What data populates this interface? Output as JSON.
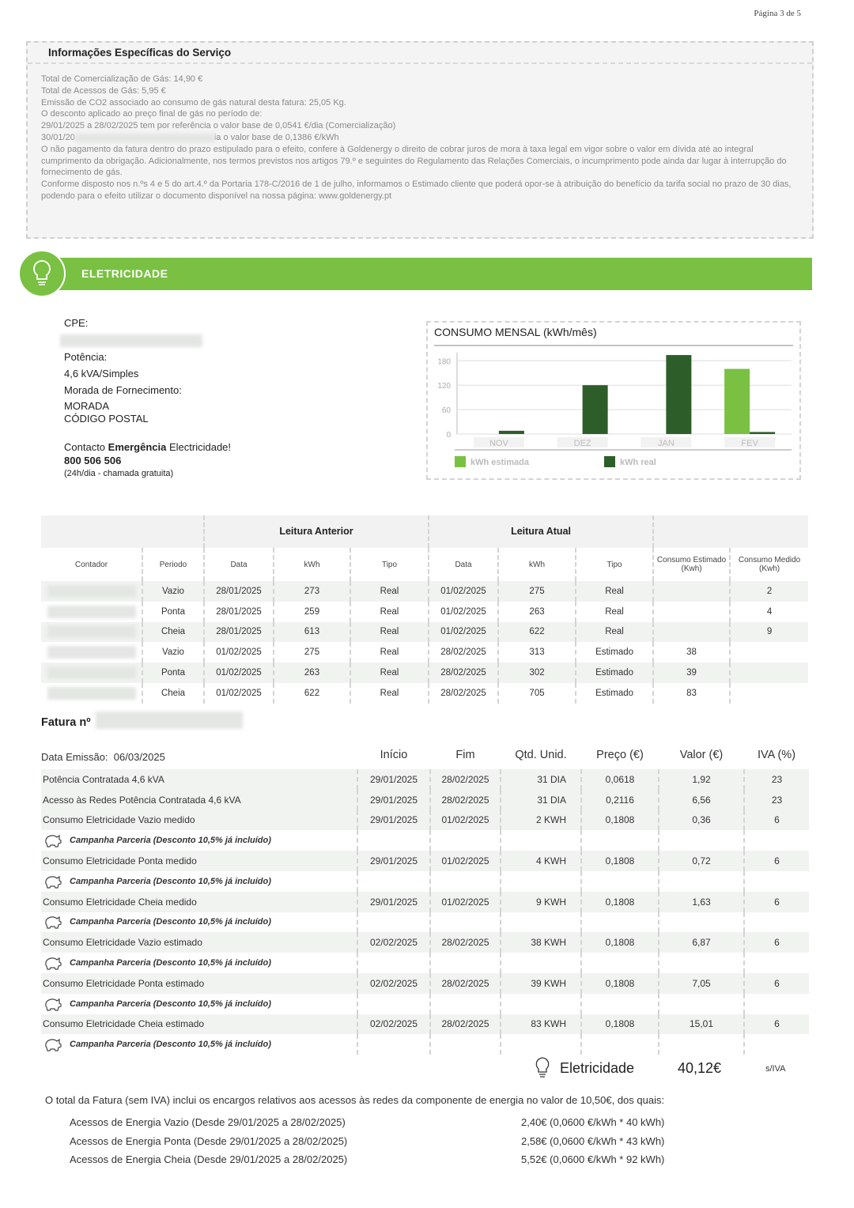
{
  "page_number": "Página 3 de 5",
  "info": {
    "title": "Informações Específicas do Serviço",
    "lines": [
      "Total de Comercialização de Gás: 14,90 €",
      "Total de Acessos de Gás: 5,95 €",
      "Emissão de CO2 associado ao consumo de gás natural desta fatura: 25,05 Kg.",
      "O desconto aplicado ao preço final de gás no período de:",
      "29/01/2025 a 28/02/2025 tem por referência o valor base de 0,0541 €/dia (Comercialização)"
    ],
    "blurred_line_start": "30/01/20",
    "blurred_line_end": "ia o valor base de 0,1386 €/kWh",
    "paragraphs": [
      "O não pagamento da fatura dentro do prazo estipulado para o efeito, confere à Goldenergy o direito de cobrar juros de mora à taxa legal em vigor sobre o valor em dívida até ao integral cumprimento da obrigação. Adicionalmente, nos termos previstos nos artigos 79.º e seguintes do Regulamento das Relações Comerciais, o incumprimento pode ainda dar lugar à interrupção do fornecimento de gás.",
      "Conforme disposto nos n.ºs 4 e 5 do art.4.º da Portaria 178-C/2016 de 1 de julho, informamos o Estimado cliente que poderá opor-se à atribuição do benefício da tarifa social no prazo de 30 dias, podendo para o efeito utilizar o documento disponível  na nossa página: www.goldenergy.pt"
    ]
  },
  "section_title": "ELETRICIDADE",
  "supply": {
    "cpe_label": "CPE:",
    "power_label": "Potência:",
    "power": "4,6 kVA/Simples",
    "address_label": "Morada de Fornecimento:",
    "address": "MORADA",
    "postal_code": "CÓDIGO POSTAL",
    "contact_start": "Contacto ",
    "contact_bold": "Emergência",
    "contact_end": " Electricidade!",
    "phone": "800 506 506",
    "phone_note": "(24h/dia - chamada gratuita)"
  },
  "chart_data": {
    "type": "bar",
    "title": "CONSUMO MENSAL (kWh/mês)",
    "categories": [
      "NOV",
      "DEZ",
      "JAN",
      "FEV"
    ],
    "series": [
      {
        "name": "kWh estimada",
        "color": "#7ac143",
        "values": [
          null,
          null,
          null,
          160
        ]
      },
      {
        "name": "kWh real",
        "color": "#2d5e2a",
        "values": [
          8,
          120,
          194,
          5
        ]
      }
    ],
    "ylim": [
      0,
      200
    ],
    "yticks": [
      0,
      60,
      120,
      180
    ],
    "grid": true,
    "legend": "bottom"
  },
  "readings": {
    "groups": [
      "Leitura Anterior",
      "Leitura Atual"
    ],
    "columns": [
      "Contador",
      "Periodo",
      "Data",
      "kWh",
      "Tipo",
      "Data",
      "kWh",
      "Tipo",
      "Consumo Estimado (Kwh)",
      "Consumo Medido (Kwh)"
    ],
    "rows": [
      [
        "Vazio",
        "28/01/2025",
        "273",
        "Real",
        "01/02/2025",
        "275",
        "Real",
        null,
        "2"
      ],
      [
        "Ponta",
        "28/01/2025",
        "259",
        "Real",
        "01/02/2025",
        "263",
        "Real",
        null,
        "4"
      ],
      [
        "Cheia",
        "28/01/2025",
        "613",
        "Real",
        "01/02/2025",
        "622",
        "Real",
        null,
        "9"
      ],
      [
        "Vazio",
        "01/02/2025",
        "275",
        "Real",
        "28/02/2025",
        "313",
        "Estimado",
        "38",
        null
      ],
      [
        "Ponta",
        "01/02/2025",
        "263",
        "Real",
        "28/02/2025",
        "302",
        "Estimado",
        "39",
        null
      ],
      [
        "Cheia",
        "01/02/2025",
        "622",
        "Real",
        "28/02/2025",
        "705",
        "Estimado",
        "83",
        null
      ]
    ]
  },
  "invoice": {
    "title": "Fatura nº",
    "issue_label": "Data Emissão:",
    "issue_date": "06/03/2025",
    "columns": [
      "Início",
      "Fim",
      "Qtd. Unid.",
      "Preço (€)",
      "Valor (€)",
      "IVA (%)"
    ],
    "rows": [
      {
        "cells": [
          "Potência Contratada 4,6 kVA",
          "29/01/2025",
          "28/02/2025",
          "31 DIA",
          "0,0618",
          "1,92",
          "23"
        ]
      },
      {
        "cells": [
          "Acesso às Redes Potência Contratada 4,6 kVA",
          "29/01/2025",
          "28/02/2025",
          "31 DIA",
          "0,2116",
          "6,56",
          "23"
        ]
      },
      {
        "cells": [
          "Consumo Eletricidade Vazio medido",
          "29/01/2025",
          "01/02/2025",
          "2 KWH",
          "0,1808",
          "0,36",
          "6"
        ]
      },
      {
        "campaign": "Campanha Parceria (Desconto 10,5% já incluído)"
      },
      {
        "cells": [
          "Consumo Eletricidade Ponta medido",
          "29/01/2025",
          "01/02/2025",
          "4 KWH",
          "0,1808",
          "0,72",
          "6"
        ]
      },
      {
        "campaign": "Campanha Parceria (Desconto 10,5% já incluído)"
      },
      {
        "cells": [
          "Consumo Eletricidade Cheia medido",
          "29/01/2025",
          "01/02/2025",
          "9 KWH",
          "0,1808",
          "1,63",
          "6"
        ]
      },
      {
        "campaign": "Campanha Parceria (Desconto 10,5% já incluído)"
      },
      {
        "cells": [
          "Consumo Eletricidade Vazio estimado",
          "02/02/2025",
          "28/02/2025",
          "38 KWH",
          "0,1808",
          "6,87",
          "6"
        ]
      },
      {
        "campaign": "Campanha Parceria (Desconto 10,5% já incluído)"
      },
      {
        "cells": [
          "Consumo Eletricidade Ponta estimado",
          "02/02/2025",
          "28/02/2025",
          "39 KWH",
          "0,1808",
          "7,05",
          "6"
        ]
      },
      {
        "campaign": "Campanha Parceria (Desconto 10,5% já incluído)"
      },
      {
        "cells": [
          "Consumo Eletricidade Cheia estimado",
          "02/02/2025",
          "28/02/2025",
          "83 KWH",
          "0,1808",
          "15,01",
          "6"
        ]
      },
      {
        "campaign": "Campanha Parceria (Desconto 10,5% já incluído)"
      }
    ]
  },
  "total": {
    "label": "Eletricidade",
    "amount": "40,12€",
    "note": "s/IVA"
  },
  "access_note": {
    "text": "O total da Fatura (sem IVA) inclui os encargos relativos aos acessos às redes da componente de energia no valor de 10,50€, dos quais:",
    "items": [
      {
        "label": "Acessos de Energia Vazio (Desde 29/01/2025 a 28/02/2025)",
        "value": "2,40€ (0,0600 €/kWh * 40 kWh)"
      },
      {
        "label": "Acessos de Energia Ponta (Desde 29/01/2025 a 28/02/2025)",
        "value": "2,58€ (0,0600 €/kWh * 43 kWh)"
      },
      {
        "label": "Acessos de Energia Cheia (Desde 29/01/2025 a 28/02/2025)",
        "value": "5,52€ (0,0600 €/kWh * 92 kWh)"
      }
    ]
  }
}
